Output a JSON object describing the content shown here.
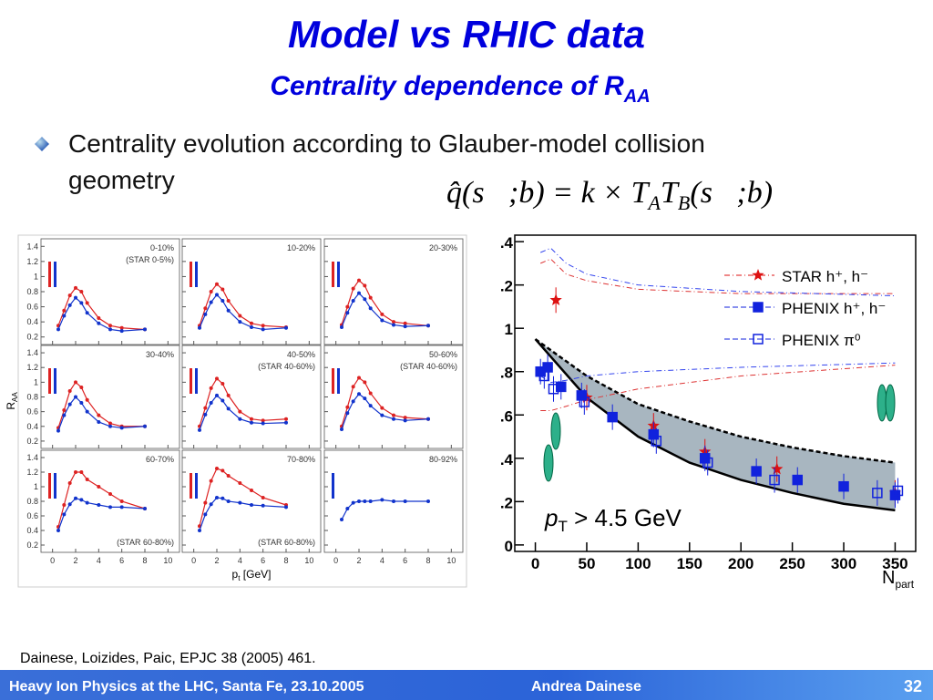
{
  "title": "Model vs RHIC data",
  "subtitle": {
    "text": "Centrality dependence of R",
    "sub": "AA"
  },
  "bullet": [
    "Centrality evolution according to Glauber-model collision",
    "geometry"
  ],
  "formula": {
    "lhs": "q̂(s⃗;b) = k × ",
    "t1": "T",
    "t1_sub": "A",
    "t2": "T",
    "t2_sub": "B",
    "args": "(s⃗;b)"
  },
  "left_figure": {
    "ylabel": {
      "text": "R",
      "sub": "AA"
    },
    "xlabel": {
      "text": "p",
      "sub": "t",
      "rest": " [GeV]"
    },
    "xlim": [
      -1,
      11
    ],
    "ylim": [
      0.1,
      1.5
    ],
    "xticks": [
      0,
      2,
      4,
      6,
      8,
      10
    ],
    "yticks": [
      0.2,
      0.4,
      0.6,
      0.8,
      1,
      1.2,
      1.4
    ],
    "star_color": "#dd2222",
    "phenix_color": "#1133cc",
    "pt": [
      0.5,
      1,
      1.5,
      2,
      2.5,
      3,
      4,
      5,
      6,
      8
    ],
    "panels": [
      {
        "label": "0-10%",
        "note": "(STAR 0-5%)",
        "star": [
          0.35,
          0.55,
          0.75,
          0.85,
          0.8,
          0.65,
          0.45,
          0.35,
          0.32,
          0.3
        ],
        "phenix": [
          0.3,
          0.48,
          0.62,
          0.72,
          0.65,
          0.52,
          0.38,
          0.3,
          0.28,
          0.3
        ]
      },
      {
        "label": "10-20%",
        "star": [
          0.35,
          0.58,
          0.8,
          0.9,
          0.83,
          0.68,
          0.48,
          0.38,
          0.35,
          0.33
        ],
        "phenix": [
          0.32,
          0.5,
          0.66,
          0.76,
          0.68,
          0.55,
          0.4,
          0.33,
          0.3,
          0.32
        ]
      },
      {
        "label": "20-30%",
        "star": [
          0.36,
          0.6,
          0.84,
          0.95,
          0.88,
          0.72,
          0.5,
          0.4,
          0.38,
          0.35
        ],
        "phenix": [
          0.33,
          0.52,
          0.68,
          0.78,
          0.7,
          0.58,
          0.42,
          0.36,
          0.34,
          0.35
        ]
      },
      {
        "label": "30-40%",
        "star": [
          0.38,
          0.62,
          0.88,
          1.0,
          0.93,
          0.76,
          0.55,
          0.44,
          0.4,
          0.4
        ],
        "phenix": [
          0.34,
          0.55,
          0.7,
          0.8,
          0.72,
          0.6,
          0.46,
          0.4,
          0.38,
          0.4
        ]
      },
      {
        "label": "40-50%",
        "note": "(STAR 40-60%)",
        "star": [
          0.4,
          0.65,
          0.92,
          1.05,
          0.98,
          0.82,
          0.6,
          0.5,
          0.48,
          0.5
        ],
        "phenix": [
          0.35,
          0.56,
          0.72,
          0.82,
          0.75,
          0.64,
          0.5,
          0.45,
          0.44,
          0.45
        ]
      },
      {
        "label": "50-60%",
        "note": "(STAR 40-60%)",
        "star": [
          0.4,
          0.66,
          0.94,
          1.06,
          1.0,
          0.85,
          0.65,
          0.55,
          0.52,
          0.5
        ],
        "phenix": [
          0.36,
          0.58,
          0.74,
          0.84,
          0.78,
          0.68,
          0.55,
          0.5,
          0.48,
          0.5
        ]
      },
      {
        "label": "60-70%",
        "note": "(STAR 60-80%)",
        "star": [
          0.45,
          0.75,
          1.05,
          1.2,
          1.2,
          1.1,
          1.0,
          0.9,
          0.8,
          0.7
        ],
        "phenix": [
          0.4,
          0.62,
          0.76,
          0.84,
          0.82,
          0.78,
          0.75,
          0.72,
          0.72,
          0.7
        ]
      },
      {
        "label": "70-80%",
        "note": "(STAR 60-80%)",
        "star": [
          0.46,
          0.78,
          1.08,
          1.25,
          1.22,
          1.15,
          1.05,
          0.95,
          0.85,
          0.75
        ],
        "phenix": [
          0.4,
          0.62,
          0.76,
          0.85,
          0.84,
          0.8,
          0.78,
          0.75,
          0.74,
          0.72
        ]
      },
      {
        "label": "80-92%",
        "phenix": [
          0.55,
          0.7,
          0.78,
          0.8,
          0.8,
          0.8,
          0.82,
          0.8,
          0.8,
          0.8
        ]
      }
    ]
  },
  "chart_data": {
    "type": "scatter",
    "xlabel": {
      "text": "N",
      "sub": "part"
    },
    "annotation": {
      "text": "p",
      "sub": "T",
      "rest": " > 4.5 GeV"
    },
    "xlim": [
      -20,
      370
    ],
    "ylim": [
      -0.03,
      1.43
    ],
    "xticks": [
      0,
      50,
      100,
      150,
      200,
      250,
      300,
      350
    ],
    "yticks": [
      {
        "value": 1.4,
        "label": ".4"
      },
      {
        "value": 1.2,
        "label": ".2"
      },
      1,
      {
        "value": 0.8,
        "label": ".8"
      },
      {
        "value": 0.6,
        "label": ".6"
      },
      {
        "value": 0.4,
        "label": ".4"
      },
      {
        "value": 0.2,
        "label": ".2"
      },
      0
    ],
    "series": [
      {
        "name": "STAR  h⁺, h⁻",
        "color": "#dd1111",
        "marker": "star",
        "x": [
          20,
          50,
          115,
          165,
          235,
          350
        ],
        "values": [
          1.13,
          0.68,
          0.55,
          0.43,
          0.35,
          0.24
        ]
      },
      {
        "name": "PHENIX  h⁺, h⁻",
        "color": "#1122dd",
        "marker": "square",
        "x": [
          5,
          12,
          25,
          45,
          75,
          115,
          165,
          215,
          255,
          300,
          350
        ],
        "values": [
          0.8,
          0.82,
          0.73,
          0.69,
          0.59,
          0.51,
          0.4,
          0.34,
          0.3,
          0.27,
          0.23
        ]
      },
      {
        "name": "PHENIX  π⁰",
        "color": "#1122dd",
        "marker": "open-square",
        "x": [
          6,
          15,
          45,
          115,
          165,
          230,
          330,
          350
        ],
        "values": [
          0.78,
          0.72,
          0.66,
          0.48,
          0.38,
          0.3,
          0.24,
          0.25
        ]
      }
    ],
    "model_band": {
      "color": "#a8b6c0",
      "x": [
        0,
        50,
        100,
        150,
        200,
        250,
        300,
        350
      ],
      "lower": [
        0.95,
        0.68,
        0.5,
        0.38,
        0.3,
        0.24,
        0.19,
        0.16
      ],
      "upper": [
        0.95,
        0.78,
        0.65,
        0.57,
        0.5,
        0.45,
        0.41,
        0.38
      ]
    },
    "curves": [
      {
        "color": "#dd3333",
        "x": [
          5,
          15,
          30,
          50,
          100,
          200,
          350
        ],
        "values": [
          1.3,
          1.32,
          1.25,
          1.22,
          1.18,
          1.16,
          1.16
        ]
      },
      {
        "color": "#dd3333",
        "x": [
          5,
          15,
          30,
          50,
          100,
          200,
          350
        ],
        "values": [
          0.62,
          0.62,
          0.64,
          0.67,
          0.72,
          0.78,
          0.83
        ]
      },
      {
        "color": "#3344ee",
        "x": [
          5,
          15,
          30,
          50,
          100,
          200,
          350
        ],
        "values": [
          1.35,
          1.37,
          1.3,
          1.25,
          1.2,
          1.17,
          1.15
        ]
      },
      {
        "color": "#3344ee",
        "x": [
          5,
          15,
          30,
          50,
          100,
          200,
          350
        ],
        "values": [
          0.78,
          0.75,
          0.76,
          0.78,
          0.8,
          0.82,
          0.84
        ]
      }
    ]
  },
  "citation": "Dainese, Loizides, Paic, EPJC 38 (2005) 461.",
  "footer": {
    "left": "Heavy Ion Physics at the LHC, Santa Fe, 23.10.2005",
    "author": "Andrea Dainese",
    "page": "32"
  }
}
